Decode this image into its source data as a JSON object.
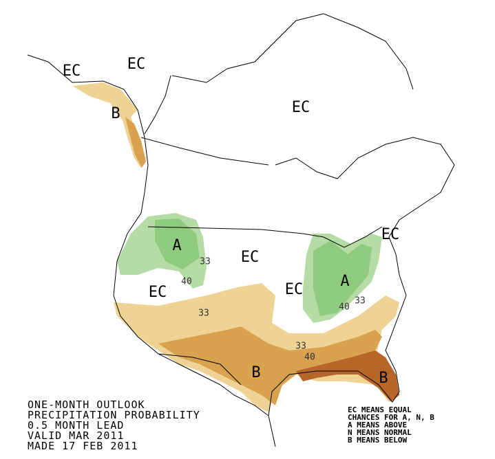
{
  "title_lines": [
    "ONE-MONTH OUTLOOK",
    "PRECIPITATION PROBABILITY",
    "0.5 MONTH LEAD",
    "VALID MAR 2011",
    "MADE 17 FEB 2011"
  ],
  "legend_lines": [
    "EC MEANS EQUAL",
    "CHANCES FOR A, N, B",
    "A MEANS ABOVE",
    "N MEANS NORMAL",
    "B MEANS BELOW"
  ],
  "region_labels": [
    "EC",
    "EC",
    "B",
    "EC",
    "A",
    "EC",
    "EC",
    "EC",
    "A",
    "EC",
    "B",
    "B"
  ],
  "contour_labels": [
    "33",
    "40",
    "33",
    "40",
    "33",
    "33",
    "40"
  ]
}
